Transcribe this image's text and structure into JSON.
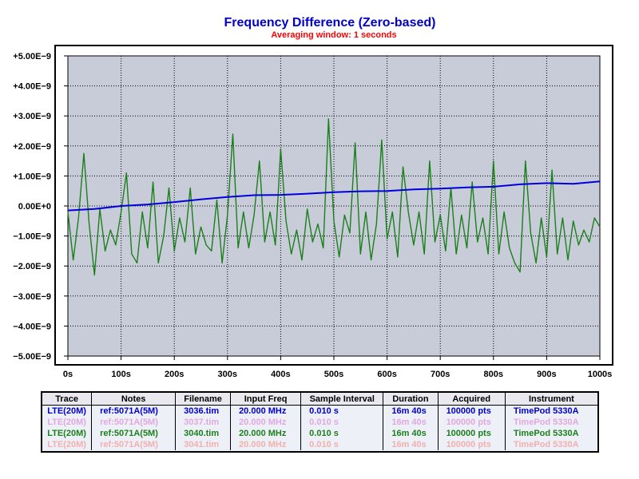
{
  "chart_data": {
    "type": "line",
    "title": "Frequency Difference (Zero-based)",
    "subtitle": "Averaging window: 1 seconds",
    "xlim": [
      0,
      1000
    ],
    "ylim": [
      -5e-09,
      5e-09
    ],
    "x_ticks": [
      "0s",
      "100s",
      "200s",
      "300s",
      "400s",
      "500s",
      "600s",
      "700s",
      "800s",
      "900s",
      "1000s"
    ],
    "y_ticks": [
      "+5.00E−9",
      "+4.00E−9",
      "+3.00E−9",
      "+2.00E−9",
      "+1.00E−9",
      "0.00E+0",
      "−1.00E−9",
      "−2.00E−9",
      "−3.00E−9",
      "−4.00E−9",
      "−5.00E−9"
    ],
    "grid": true,
    "series": [
      {
        "name": "LTE(20M)",
        "color": "#0000dd",
        "x": [
          0,
          50,
          100,
          150,
          200,
          250,
          300,
          350,
          400,
          450,
          500,
          550,
          600,
          650,
          700,
          750,
          800,
          850,
          900,
          950,
          1000
        ],
        "values": [
          -1.5e-10,
          -1e-10,
          0,
          5e-11,
          1.3e-10,
          2.2e-10,
          3e-10,
          3.6e-10,
          3.7e-10,
          4.1e-10,
          4.6e-10,
          4.9e-10,
          5e-10,
          5.5e-10,
          5.8e-10,
          6.2e-10,
          6.4e-10,
          7.2e-10,
          7.6e-10,
          7.4e-10,
          8.2e-10
        ]
      },
      {
        "name": "LTE(20M)",
        "color": "#1b7f1b",
        "x": [
          0,
          10,
          20,
          30,
          40,
          50,
          60,
          70,
          80,
          90,
          100,
          110,
          120,
          130,
          140,
          150,
          160,
          170,
          180,
          190,
          200,
          210,
          220,
          230,
          240,
          250,
          260,
          270,
          280,
          290,
          300,
          310,
          320,
          330,
          340,
          350,
          360,
          370,
          380,
          390,
          400,
          410,
          420,
          430,
          440,
          450,
          460,
          470,
          480,
          490,
          500,
          510,
          520,
          530,
          540,
          550,
          560,
          570,
          580,
          590,
          600,
          610,
          620,
          630,
          640,
          650,
          660,
          670,
          680,
          690,
          700,
          710,
          720,
          730,
          740,
          750,
          760,
          770,
          780,
          790,
          800,
          810,
          820,
          830,
          840,
          850,
          860,
          870,
          880,
          890,
          900,
          910,
          920,
          930,
          940,
          950,
          960,
          970,
          980,
          990,
          1000
        ],
        "values": [
          -2e-10,
          -1.8e-09,
          -4e-10,
          1.75e-09,
          -6e-10,
          -2.3e-09,
          -1e-10,
          -1.5e-09,
          -8e-10,
          -1.3e-09,
          -2e-10,
          1.1e-09,
          -1.6e-09,
          -1.9e-09,
          -2e-10,
          -1.4e-09,
          8e-10,
          -1.9e-09,
          -1e-09,
          6e-10,
          -1.5e-09,
          -4e-10,
          -1.2e-09,
          6e-10,
          -1.6e-09,
          -7e-10,
          -1.3e-09,
          -1.5e-09,
          2e-10,
          -1.9e-09,
          -3e-10,
          2.4e-09,
          -1.4e-09,
          -2e-10,
          -1.4e-09,
          -3e-10,
          1.5e-09,
          -1.2e-09,
          -2e-10,
          -1.3e-09,
          1.9e-09,
          -5e-10,
          -1.6e-09,
          -8e-10,
          -1.8e-09,
          -1e-10,
          -1.2e-09,
          -6e-10,
          -1.4e-09,
          2.9e-09,
          -5e-10,
          -1.7e-09,
          -3e-10,
          -9e-10,
          2.1e-09,
          -1.6e-09,
          -2e-10,
          -1.8e-09,
          -6e-10,
          2.2e-09,
          -1.1e-09,
          -2e-10,
          -1.7e-09,
          1.3e-09,
          -2e-10,
          -1.3e-09,
          -2e-10,
          -1.6e-09,
          1.5e-09,
          -1.2e-09,
          -3e-10,
          -1.5e-09,
          6e-10,
          -1.6e-09,
          -3e-10,
          -1.4e-09,
          8e-10,
          -1.2e-09,
          -4e-10,
          -1.6e-09,
          1.5e-09,
          -1.6e-09,
          -2e-10,
          -1.4e-09,
          -1.9e-09,
          -2.2e-09,
          1.5e-09,
          -9e-10,
          -1.9e-09,
          -4e-10,
          -1.7e-09,
          1.2e-09,
          -1.6e-09,
          -4e-10,
          -1.8e-09,
          -5e-10,
          -1.3e-09,
          -8e-10,
          -1.2e-09,
          -4e-10,
          -7e-10
        ]
      }
    ]
  },
  "legend": {
    "headers": [
      "Trace",
      "Notes",
      "Filename",
      "Input Freq",
      "Sample Interval",
      "Duration",
      "Acquired",
      "Instrument"
    ],
    "rows": [
      {
        "color": "#0000cc",
        "cells": [
          "LTE(20M)",
          "ref:5071A(5M)",
          "3036.tim",
          "20.000 MHz",
          "0.010 s",
          "16m 40s",
          "100000 pts",
          "TimePod 5330A"
        ]
      },
      {
        "color": "#e0a8e0",
        "cells": [
          "LTE(20M)",
          "ref:5071A(5M)",
          "3037.tim",
          "20.000 MHz",
          "0.010 s",
          "16m 40s",
          "100000 pts",
          "TimePod 5330A"
        ]
      },
      {
        "color": "#1b7f1b",
        "cells": [
          "LTE(20M)",
          "ref:5071A(5M)",
          "3040.tim",
          "20.000 MHz",
          "0.010 s",
          "16m 40s",
          "100000 pts",
          "TimePod 5330A"
        ]
      },
      {
        "color": "#f0b0b0",
        "cells": [
          "LTE(20M)",
          "ref:5071A(5M)",
          "3041.tim",
          "20.000 MHz",
          "0.010 s",
          "16m 40s",
          "100000 pts",
          "TimePod 5330A"
        ]
      }
    ]
  },
  "colors": {
    "title": "#0000cc",
    "subtitle": "#ff0000",
    "plot_bg": "#c8ccd8",
    "zero_label": "#0000cc"
  }
}
